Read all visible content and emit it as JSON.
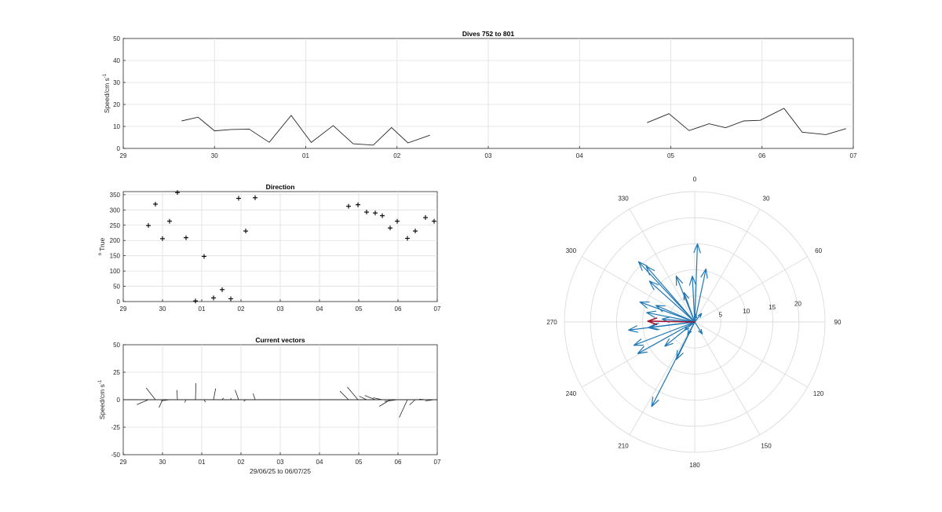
{
  "chart_data": [
    {
      "id": "speed",
      "type": "line",
      "title": "Dives 752 to 801",
      "ylabel": "Speed/cm s",
      "ylabel_sup": "-1",
      "xlim": [
        29,
        37
      ],
      "ylim": [
        0,
        50
      ],
      "xticks": [
        29,
        30,
        31,
        32,
        33,
        34,
        35,
        36,
        37
      ],
      "xticklabels": [
        "29",
        "30",
        "01",
        "02",
        "03",
        "04",
        "05",
        "06",
        "07"
      ],
      "yticks": [
        0,
        10,
        20,
        30,
        40,
        50
      ],
      "yticklabels": [
        "0",
        "10",
        "20",
        "30",
        "40",
        "50"
      ],
      "grid": true,
      "series": [
        {
          "color": "#262626",
          "segments": [
            [
              [
                29.64,
                12.5
              ],
              [
                29.82,
                14.2
              ],
              [
                30.0,
                8.0
              ],
              [
                30.18,
                8.6
              ],
              [
                30.38,
                8.8
              ],
              [
                30.6,
                2.8
              ],
              [
                30.84,
                15.0
              ],
              [
                31.06,
                2.7
              ],
              [
                31.3,
                10.4
              ],
              [
                31.52,
                2.1
              ],
              [
                31.74,
                1.5
              ],
              [
                31.94,
                9.5
              ],
              [
                32.12,
                2.5
              ],
              [
                32.36,
                6.0
              ]
            ],
            [
              [
                34.74,
                11.7
              ],
              [
                34.98,
                15.8
              ],
              [
                35.2,
                8.1
              ],
              [
                35.42,
                11.2
              ],
              [
                35.6,
                9.4
              ],
              [
                35.8,
                12.5
              ],
              [
                35.98,
                12.8
              ],
              [
                36.24,
                18.2
              ],
              [
                36.44,
                7.4
              ],
              [
                36.7,
                6.3
              ],
              [
                36.92,
                9.0
              ]
            ]
          ]
        }
      ]
    },
    {
      "id": "direction",
      "type": "scatter",
      "title": "Direction",
      "ylabel": "True",
      "ylabel_prefix": "o",
      "marker": "+",
      "xlim": [
        29,
        37
      ],
      "ylim": [
        0,
        360
      ],
      "xticks": [
        29,
        30,
        31,
        32,
        33,
        34,
        35,
        36,
        37
      ],
      "xticklabels": [
        "29",
        "30",
        "01",
        "02",
        "03",
        "04",
        "05",
        "06",
        "07"
      ],
      "yticks": [
        0,
        50,
        100,
        150,
        200,
        250,
        300,
        350
      ],
      "yticklabels": [
        "0",
        "50",
        "100",
        "150",
        "200",
        "250",
        "300",
        "350"
      ],
      "grid": true,
      "points": [
        [
          29.64,
          249
        ],
        [
          29.82,
          319
        ],
        [
          30.0,
          206
        ],
        [
          30.18,
          263
        ],
        [
          30.38,
          357
        ],
        [
          30.6,
          209
        ],
        [
          30.84,
          2
        ],
        [
          31.06,
          148
        ],
        [
          31.3,
          12
        ],
        [
          31.52,
          39
        ],
        [
          31.74,
          9
        ],
        [
          31.94,
          338
        ],
        [
          32.12,
          231
        ],
        [
          32.36,
          340
        ],
        [
          34.74,
          312
        ],
        [
          34.98,
          317
        ],
        [
          35.2,
          293
        ],
        [
          35.42,
          290
        ],
        [
          35.6,
          281
        ],
        [
          35.8,
          241
        ],
        [
          35.98,
          263
        ],
        [
          36.24,
          207
        ],
        [
          36.44,
          231
        ],
        [
          36.7,
          275
        ],
        [
          36.92,
          263
        ]
      ]
    },
    {
      "id": "vectors",
      "type": "line",
      "title": "Current vectors",
      "ylabel": "Speed/cm s",
      "ylabel_sup": "-1",
      "xlabel": "29/06/25 to 06/07/25",
      "xlim": [
        29,
        37
      ],
      "ylim": [
        -50,
        50
      ],
      "xticks": [
        29,
        30,
        31,
        32,
        33,
        34,
        35,
        36,
        37
      ],
      "xticklabels": [
        "29",
        "30",
        "01",
        "02",
        "03",
        "04",
        "05",
        "06",
        "07"
      ],
      "yticks": [
        -50,
        -25,
        0,
        25,
        50
      ],
      "yticklabels": [
        "-50",
        "-25",
        "0",
        "25",
        "50"
      ],
      "grid": true
    },
    {
      "id": "polar",
      "type": "polar-vectors",
      "rlim": [
        0,
        25
      ],
      "rticks": [
        5,
        10,
        15,
        20
      ],
      "rticklabels": [
        "5",
        "10",
        "15",
        "20"
      ],
      "thetaticks": [
        0,
        30,
        60,
        90,
        120,
        150,
        180,
        210,
        240,
        270,
        300,
        330
      ],
      "thetaticklabels": [
        "0",
        "30",
        "60",
        "90",
        "120",
        "150",
        "180",
        "210",
        "240",
        "270",
        "300",
        "330"
      ],
      "arrow_color": "#1f77b4",
      "mean_color": "#a2142f",
      "mean_vector": {
        "direction": 271,
        "speed": 9
      }
    }
  ]
}
